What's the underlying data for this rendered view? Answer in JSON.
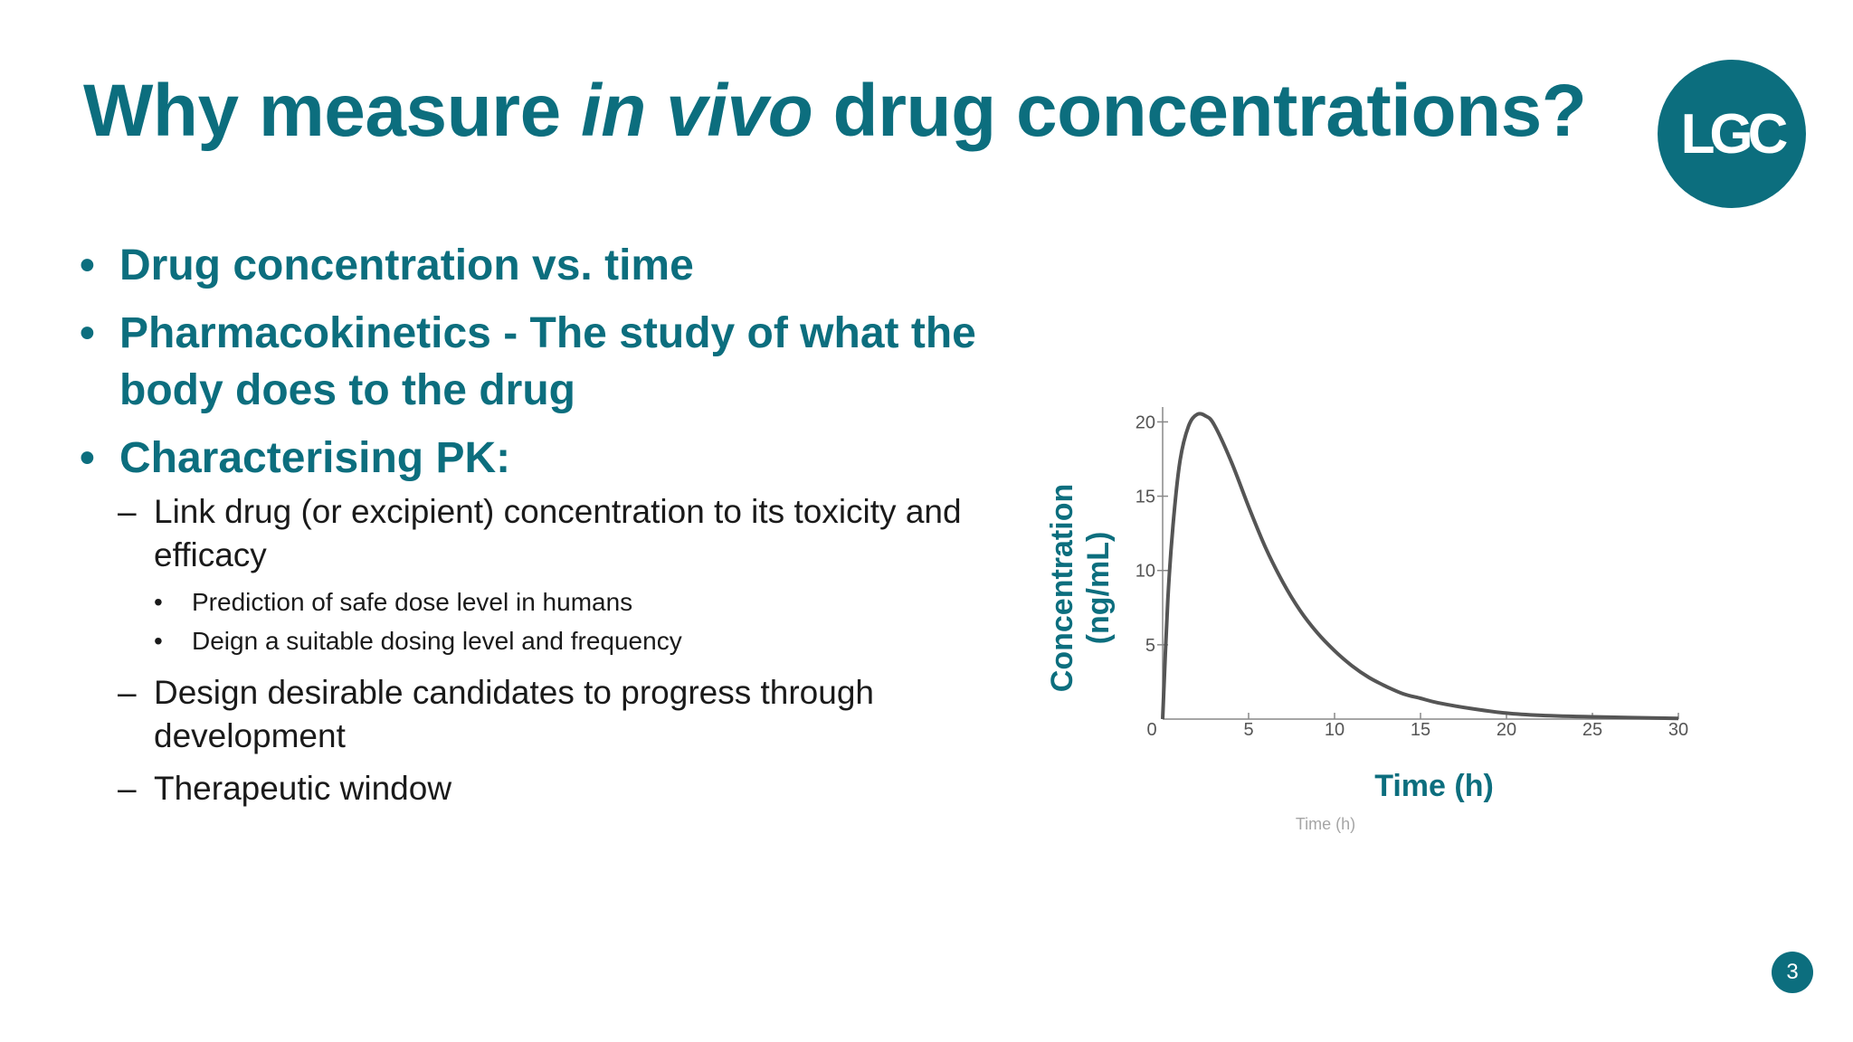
{
  "slide": {
    "title_pre": "Why measure ",
    "title_em": "in vivo",
    "title_post": " drug concentrations?",
    "logo_text": "LGC",
    "page_number": "3"
  },
  "bullets": [
    {
      "text": "Drug concentration vs. time"
    },
    {
      "text": "Pharmacokinetics - The study of what the body does to the drug"
    },
    {
      "text": "Characterising PK:"
    }
  ],
  "subbullets": [
    {
      "text": "Link drug (or excipient) concentration to its toxicity and efficacy"
    },
    {
      "text": "Design desirable candidates to progress through development"
    },
    {
      "text": "Therapeutic window"
    }
  ],
  "subsubbullets": [
    {
      "text": "Prediction of safe dose level in humans"
    },
    {
      "text": "Deign a suitable dosing level and frequency"
    }
  ],
  "markers": {
    "bullet": "•",
    "dash": "–"
  },
  "colors": {
    "brand": "#0c6e7e",
    "text": "#1a1a1a",
    "curve": "#555555"
  },
  "chart_data": {
    "type": "line",
    "xlabel": "Time (h)",
    "ylabel_line1": "Concentration",
    "ylabel_line2": "(ng/mL)",
    "stray_label": "Time (h)",
    "xlim": [
      0,
      30
    ],
    "ylim": [
      0,
      21
    ],
    "xticks": [
      0,
      5,
      10,
      15,
      20,
      25,
      30
    ],
    "yticks": [
      5,
      10,
      15,
      20
    ],
    "x": [
      0,
      0.3,
      0.6,
      1,
      1.5,
      2,
      2.5,
      3,
      4,
      5,
      6,
      7,
      8,
      9,
      10,
      11,
      12,
      13,
      14,
      15,
      16,
      18,
      20,
      22,
      25,
      30
    ],
    "y": [
      0,
      8,
      13,
      17.3,
      19.7,
      20.5,
      20.4,
      19.8,
      17.3,
      14.3,
      11.5,
      9.2,
      7.3,
      5.8,
      4.6,
      3.6,
      2.8,
      2.2,
      1.7,
      1.4,
      1.1,
      0.7,
      0.4,
      0.25,
      0.15,
      0.05
    ]
  }
}
